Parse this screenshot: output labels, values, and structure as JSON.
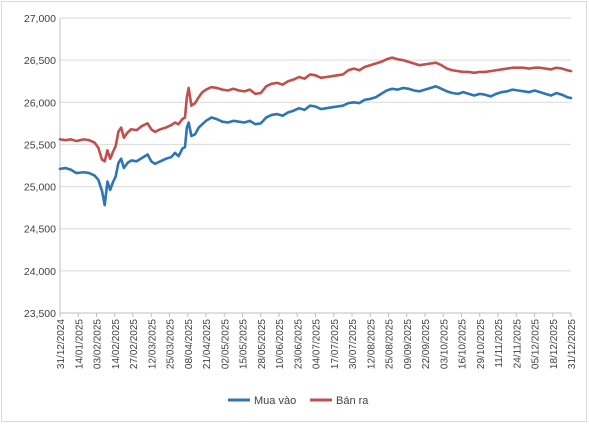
{
  "chart_data": {
    "type": "line",
    "title": "",
    "xlabel": "",
    "ylabel": "",
    "ylim": [
      23500,
      27000
    ],
    "yticks": [
      23500,
      24000,
      24500,
      25000,
      25500,
      26000,
      26500,
      27000
    ],
    "ytick_labels": [
      "23,500",
      "24,000",
      "24,500",
      "25,000",
      "25,500",
      "26,000",
      "26,500",
      "27,000"
    ],
    "xtick_labels": [
      "31/12/2024",
      "14/01/2025",
      "03/02/2025",
      "14/02/2025",
      "27/02/2025",
      "12/03/2025",
      "25/03/2025",
      "08/04/2025",
      "21/04/2025",
      "02/05/2025",
      "15/05/2025",
      "28/05/2025",
      "10/06/2025",
      "23/06/2025",
      "04/07/2025",
      "17/07/2025",
      "30/07/2025",
      "12/08/2025",
      "25/08/2025",
      "09/09/2025",
      "22/09/2025",
      "03/10/2025",
      "16/10/2025",
      "29/10/2025",
      "11/11/2025",
      "24/11/2025",
      "05/12/2025",
      "18/12/2025",
      "31/12/2025"
    ],
    "grid": true,
    "legend": "bottom-center",
    "series": [
      {
        "name": "Mua vào",
        "color": "#2e75b6",
        "points": [
          [
            0,
            25210
          ],
          [
            0.3,
            25220
          ],
          [
            0.6,
            25200
          ],
          [
            0.9,
            25160
          ],
          [
            1.3,
            25170
          ],
          [
            1.6,
            25160
          ],
          [
            1.9,
            25130
          ],
          [
            2.1,
            25080
          ],
          [
            2.3,
            24950
          ],
          [
            2.45,
            24780
          ],
          [
            2.6,
            25060
          ],
          [
            2.75,
            24960
          ],
          [
            2.9,
            25050
          ],
          [
            3.05,
            25120
          ],
          [
            3.2,
            25280
          ],
          [
            3.35,
            25330
          ],
          [
            3.5,
            25220
          ],
          [
            3.7,
            25280
          ],
          [
            3.9,
            25310
          ],
          [
            4.2,
            25300
          ],
          [
            4.5,
            25340
          ],
          [
            4.8,
            25380
          ],
          [
            5.0,
            25300
          ],
          [
            5.2,
            25270
          ],
          [
            5.5,
            25300
          ],
          [
            5.8,
            25330
          ],
          [
            6.1,
            25350
          ],
          [
            6.3,
            25400
          ],
          [
            6.5,
            25360
          ],
          [
            6.7,
            25450
          ],
          [
            6.85,
            25470
          ],
          [
            6.95,
            25700
          ],
          [
            7.05,
            25760
          ],
          [
            7.2,
            25600
          ],
          [
            7.4,
            25620
          ],
          [
            7.6,
            25700
          ],
          [
            7.8,
            25740
          ],
          [
            8.0,
            25780
          ],
          [
            8.3,
            25820
          ],
          [
            8.6,
            25800
          ],
          [
            8.9,
            25770
          ],
          [
            9.2,
            25760
          ],
          [
            9.5,
            25780
          ],
          [
            9.8,
            25770
          ],
          [
            10.1,
            25760
          ],
          [
            10.4,
            25780
          ],
          [
            10.7,
            25740
          ],
          [
            11.0,
            25750
          ],
          [
            11.3,
            25820
          ],
          [
            11.6,
            25850
          ],
          [
            11.9,
            25860
          ],
          [
            12.2,
            25840
          ],
          [
            12.5,
            25880
          ],
          [
            12.8,
            25900
          ],
          [
            13.1,
            25930
          ],
          [
            13.4,
            25910
          ],
          [
            13.7,
            25960
          ],
          [
            14.0,
            25950
          ],
          [
            14.3,
            25920
          ],
          [
            14.6,
            25930
          ],
          [
            14.9,
            25940
          ],
          [
            15.2,
            25950
          ],
          [
            15.5,
            25960
          ],
          [
            15.8,
            25990
          ],
          [
            16.1,
            26000
          ],
          [
            16.4,
            25990
          ],
          [
            16.7,
            26030
          ],
          [
            17.0,
            26040
          ],
          [
            17.3,
            26060
          ],
          [
            17.6,
            26100
          ],
          [
            17.9,
            26140
          ],
          [
            18.2,
            26160
          ],
          [
            18.5,
            26150
          ],
          [
            18.8,
            26170
          ],
          [
            19.1,
            26160
          ],
          [
            19.4,
            26140
          ],
          [
            19.7,
            26130
          ],
          [
            20.0,
            26150
          ],
          [
            20.3,
            26170
          ],
          [
            20.6,
            26190
          ],
          [
            20.9,
            26160
          ],
          [
            21.2,
            26130
          ],
          [
            21.5,
            26110
          ],
          [
            21.8,
            26100
          ],
          [
            22.1,
            26120
          ],
          [
            22.4,
            26100
          ],
          [
            22.7,
            26080
          ],
          [
            23.0,
            26100
          ],
          [
            23.3,
            26090
          ],
          [
            23.6,
            26070
          ],
          [
            23.9,
            26100
          ],
          [
            24.2,
            26120
          ],
          [
            24.5,
            26130
          ],
          [
            24.8,
            26150
          ],
          [
            25.1,
            26140
          ],
          [
            25.4,
            26130
          ],
          [
            25.7,
            26120
          ],
          [
            26.0,
            26140
          ],
          [
            26.3,
            26120
          ],
          [
            26.6,
            26100
          ],
          [
            26.9,
            26080
          ],
          [
            27.2,
            26110
          ],
          [
            27.5,
            26090
          ],
          [
            27.8,
            26060
          ],
          [
            28.0,
            26050
          ]
        ]
      },
      {
        "name": "Bán ra",
        "color": "#c0504d",
        "points": [
          [
            0,
            25560
          ],
          [
            0.3,
            25550
          ],
          [
            0.6,
            25560
          ],
          [
            0.9,
            25540
          ],
          [
            1.3,
            25560
          ],
          [
            1.6,
            25550
          ],
          [
            1.9,
            25520
          ],
          [
            2.1,
            25460
          ],
          [
            2.3,
            25320
          ],
          [
            2.45,
            25300
          ],
          [
            2.6,
            25430
          ],
          [
            2.75,
            25330
          ],
          [
            2.9,
            25410
          ],
          [
            3.05,
            25480
          ],
          [
            3.2,
            25650
          ],
          [
            3.35,
            25700
          ],
          [
            3.5,
            25580
          ],
          [
            3.7,
            25640
          ],
          [
            3.9,
            25680
          ],
          [
            4.2,
            25670
          ],
          [
            4.5,
            25720
          ],
          [
            4.8,
            25750
          ],
          [
            5.0,
            25680
          ],
          [
            5.2,
            25650
          ],
          [
            5.5,
            25680
          ],
          [
            5.8,
            25700
          ],
          [
            6.1,
            25730
          ],
          [
            6.3,
            25760
          ],
          [
            6.5,
            25740
          ],
          [
            6.7,
            25800
          ],
          [
            6.85,
            25820
          ],
          [
            6.95,
            26060
          ],
          [
            7.05,
            26170
          ],
          [
            7.2,
            25960
          ],
          [
            7.4,
            25990
          ],
          [
            7.6,
            26060
          ],
          [
            7.8,
            26120
          ],
          [
            8.0,
            26150
          ],
          [
            8.3,
            26180
          ],
          [
            8.6,
            26170
          ],
          [
            8.9,
            26150
          ],
          [
            9.2,
            26140
          ],
          [
            9.5,
            26160
          ],
          [
            9.8,
            26140
          ],
          [
            10.1,
            26130
          ],
          [
            10.4,
            26150
          ],
          [
            10.7,
            26100
          ],
          [
            11.0,
            26110
          ],
          [
            11.3,
            26190
          ],
          [
            11.6,
            26220
          ],
          [
            11.9,
            26230
          ],
          [
            12.2,
            26210
          ],
          [
            12.5,
            26250
          ],
          [
            12.8,
            26270
          ],
          [
            13.1,
            26300
          ],
          [
            13.4,
            26280
          ],
          [
            13.7,
            26330
          ],
          [
            14.0,
            26320
          ],
          [
            14.3,
            26290
          ],
          [
            14.6,
            26300
          ],
          [
            14.9,
            26310
          ],
          [
            15.2,
            26320
          ],
          [
            15.5,
            26330
          ],
          [
            15.8,
            26380
          ],
          [
            16.1,
            26400
          ],
          [
            16.4,
            26380
          ],
          [
            16.7,
            26420
          ],
          [
            17.0,
            26440
          ],
          [
            17.3,
            26460
          ],
          [
            17.6,
            26480
          ],
          [
            17.9,
            26510
          ],
          [
            18.2,
            26530
          ],
          [
            18.5,
            26510
          ],
          [
            18.8,
            26500
          ],
          [
            19.1,
            26480
          ],
          [
            19.4,
            26460
          ],
          [
            19.7,
            26440
          ],
          [
            20.0,
            26450
          ],
          [
            20.3,
            26460
          ],
          [
            20.6,
            26470
          ],
          [
            20.9,
            26440
          ],
          [
            21.2,
            26400
          ],
          [
            21.5,
            26380
          ],
          [
            21.8,
            26370
          ],
          [
            22.1,
            26360
          ],
          [
            22.4,
            26360
          ],
          [
            22.7,
            26350
          ],
          [
            23.0,
            26360
          ],
          [
            23.3,
            26360
          ],
          [
            23.6,
            26370
          ],
          [
            23.9,
            26380
          ],
          [
            24.2,
            26390
          ],
          [
            24.5,
            26400
          ],
          [
            24.8,
            26410
          ],
          [
            25.1,
            26410
          ],
          [
            25.4,
            26410
          ],
          [
            25.7,
            26400
          ],
          [
            26.0,
            26410
          ],
          [
            26.3,
            26410
          ],
          [
            26.6,
            26400
          ],
          [
            26.9,
            26390
          ],
          [
            27.2,
            26410
          ],
          [
            27.5,
            26400
          ],
          [
            27.8,
            26380
          ],
          [
            28.0,
            26370
          ]
        ]
      }
    ]
  }
}
